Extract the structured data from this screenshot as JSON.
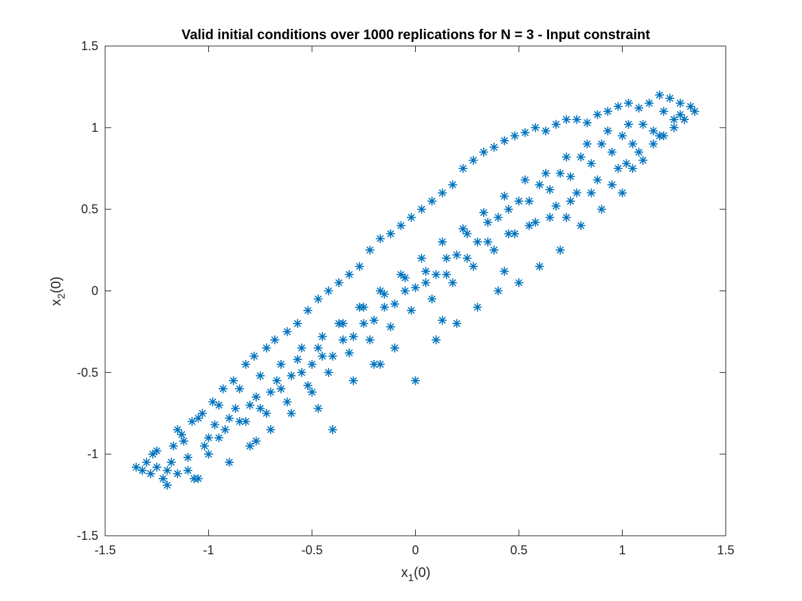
{
  "chart_data": {
    "type": "scatter",
    "title": "Valid initial conditions over 1000 replications for N = 3 - Input constraint",
    "xlabel": {
      "base": "x",
      "sub": "1",
      "suffix": "(0)"
    },
    "ylabel": {
      "base": "x",
      "sub": "2",
      "suffix": "(0)"
    },
    "xlim": [
      -1.5,
      1.5
    ],
    "ylim": [
      -1.5,
      1.5
    ],
    "xticks": [
      -1.5,
      -1,
      -0.5,
      0,
      0.5,
      1,
      1.5
    ],
    "yticks": [
      -1.5,
      -1,
      -0.5,
      0,
      0.5,
      1,
      1.5
    ],
    "xtick_labels": [
      "-1.5",
      "-1",
      "-0.5",
      "0",
      "0.5",
      "1",
      "1.5"
    ],
    "ytick_labels": [
      "-1.5",
      "-1",
      "-0.5",
      "0",
      "0.5",
      "1",
      "1.5"
    ],
    "grid": false,
    "marker": "asterisk",
    "color": "#0072BD",
    "series": [
      {
        "x": [
          -1.35,
          -1.32,
          -1.3,
          -1.28,
          -1.27,
          -1.25,
          -1.22,
          -1.2,
          -1.18,
          -1.17,
          -1.15,
          -1.13,
          -1.1,
          -1.08,
          -1.05,
          -1.03,
          -1.0,
          -0.98,
          -0.95,
          -0.93,
          -0.9,
          -0.88,
          -0.85,
          -0.82,
          -0.8,
          -0.78,
          -0.75,
          -0.72,
          -0.7,
          -0.68,
          -0.65,
          -0.62,
          -0.6,
          -0.57,
          -0.55,
          -0.52,
          -0.5,
          -0.47,
          -0.45,
          -0.42,
          -0.4,
          -0.37,
          -0.35,
          -0.32,
          -0.3,
          -0.27,
          -0.25,
          -0.22,
          -0.2,
          -0.17,
          -0.15,
          -0.12,
          -0.1,
          -0.07,
          -0.05,
          -0.02,
          0.0,
          0.03,
          0.05,
          0.08,
          0.1,
          0.13,
          0.15,
          0.18,
          0.2,
          0.23,
          0.25,
          0.28,
          0.3,
          0.33,
          0.35,
          0.38,
          0.4,
          0.43,
          0.45,
          0.48,
          0.5,
          0.53,
          0.55,
          0.58,
          0.6,
          0.63,
          0.65,
          0.68,
          0.7,
          0.73,
          0.75,
          0.78,
          0.8,
          0.83,
          0.85,
          0.88,
          0.9,
          0.93,
          0.95,
          0.98,
          1.0,
          1.03,
          1.05,
          1.08,
          1.1,
          1.13,
          1.15,
          1.18,
          1.2,
          1.23,
          1.25,
          1.28,
          1.3,
          1.33,
          1.35,
          -1.25,
          -1.15,
          -1.05,
          -0.95,
          -0.85,
          -0.75,
          -0.65,
          -0.55,
          -0.45,
          -0.35,
          -0.25,
          -0.15,
          -0.05,
          0.05,
          0.15,
          0.25,
          0.35,
          0.45,
          0.55,
          0.65,
          0.75,
          0.85,
          0.95,
          1.05,
          1.15,
          1.25,
          -1.2,
          -1.1,
          -1.0,
          -0.9,
          -0.8,
          -0.7,
          -0.6,
          -0.5,
          -0.4,
          -0.3,
          -0.2,
          -0.1,
          0.0,
          0.1,
          0.2,
          0.3,
          0.4,
          0.5,
          0.6,
          0.7,
          0.8,
          0.9,
          1.0,
          1.1,
          1.2,
          -1.12,
          -1.02,
          -0.92,
          -0.82,
          -0.72,
          -0.62,
          -0.52,
          -0.42,
          -0.32,
          -0.22,
          -0.12,
          -0.02,
          0.08,
          0.18,
          0.28,
          0.38,
          0.48,
          0.58,
          0.68,
          0.78,
          0.88,
          0.98,
          1.08,
          1.18,
          1.28,
          -0.97,
          -0.87,
          -0.77,
          -0.67,
          -0.57,
          -0.47,
          -0.37,
          -0.27,
          -0.17,
          -0.07,
          0.03,
          0.13,
          0.23,
          0.33,
          0.43,
          0.53,
          0.63,
          0.73,
          0.83,
          0.93,
          1.03,
          -1.07,
          -0.77,
          -0.47,
          -0.17,
          0.13,
          0.43,
          0.73,
          1.02
        ],
        "y": [
          -1.08,
          -1.1,
          -1.05,
          -1.12,
          -1.0,
          -1.08,
          -1.15,
          -1.19,
          -1.05,
          -0.95,
          -1.12,
          -0.88,
          -1.1,
          -0.8,
          -1.15,
          -0.75,
          -1.0,
          -0.68,
          -0.9,
          -0.6,
          -1.05,
          -0.55,
          -0.8,
          -0.45,
          -0.95,
          -0.4,
          -0.72,
          -0.35,
          -0.85,
          -0.3,
          -0.6,
          -0.25,
          -0.75,
          -0.2,
          -0.5,
          -0.12,
          -0.62,
          -0.05,
          -0.4,
          0.0,
          -0.85,
          0.05,
          -0.3,
          0.1,
          -0.55,
          0.15,
          -0.2,
          0.25,
          -0.45,
          0.32,
          -0.1,
          0.35,
          -0.35,
          0.4,
          0.0,
          0.45,
          -0.55,
          0.5,
          0.05,
          0.55,
          -0.3,
          0.6,
          0.1,
          0.65,
          -0.2,
          0.75,
          0.2,
          0.8,
          -0.1,
          0.85,
          0.3,
          0.88,
          0.0,
          0.92,
          0.35,
          0.95,
          0.05,
          0.97,
          0.4,
          1.0,
          0.15,
          0.98,
          0.45,
          1.02,
          0.25,
          1.05,
          0.55,
          1.05,
          0.4,
          1.03,
          0.6,
          1.08,
          0.5,
          1.1,
          0.65,
          1.13,
          0.6,
          1.15,
          0.75,
          1.12,
          0.8,
          1.15,
          0.9,
          1.2,
          0.95,
          1.18,
          1.0,
          1.15,
          1.05,
          1.13,
          1.1,
          -0.98,
          -0.85,
          -0.78,
          -0.7,
          -0.6,
          -0.52,
          -0.45,
          -0.35,
          -0.28,
          -0.2,
          -0.1,
          -0.02,
          0.08,
          0.12,
          0.2,
          0.35,
          0.42,
          0.5,
          0.55,
          0.62,
          0.7,
          0.78,
          0.85,
          0.9,
          0.98,
          1.05,
          -1.1,
          -1.02,
          -0.9,
          -0.78,
          -0.7,
          -0.62,
          -0.52,
          -0.45,
          -0.4,
          -0.28,
          -0.18,
          -0.08,
          0.02,
          0.1,
          0.22,
          0.3,
          0.45,
          0.55,
          0.65,
          0.72,
          0.82,
          0.9,
          0.95,
          1.02,
          1.1,
          -0.92,
          -0.95,
          -0.85,
          -0.8,
          -0.75,
          -0.68,
          -0.58,
          -0.5,
          -0.38,
          -0.3,
          -0.22,
          -0.12,
          -0.05,
          0.05,
          0.15,
          0.25,
          0.35,
          0.42,
          0.52,
          0.6,
          0.68,
          0.75,
          0.85,
          0.95,
          1.08,
          -0.82,
          -0.72,
          -0.65,
          -0.55,
          -0.42,
          -0.35,
          -0.2,
          -0.1,
          0.0,
          0.1,
          0.2,
          0.3,
          0.38,
          0.48,
          0.58,
          0.68,
          0.72,
          0.82,
          0.9,
          0.98,
          1.02,
          -1.15,
          -0.92,
          -0.72,
          -0.45,
          -0.18,
          0.12,
          0.45,
          0.78
        ]
      }
    ]
  }
}
